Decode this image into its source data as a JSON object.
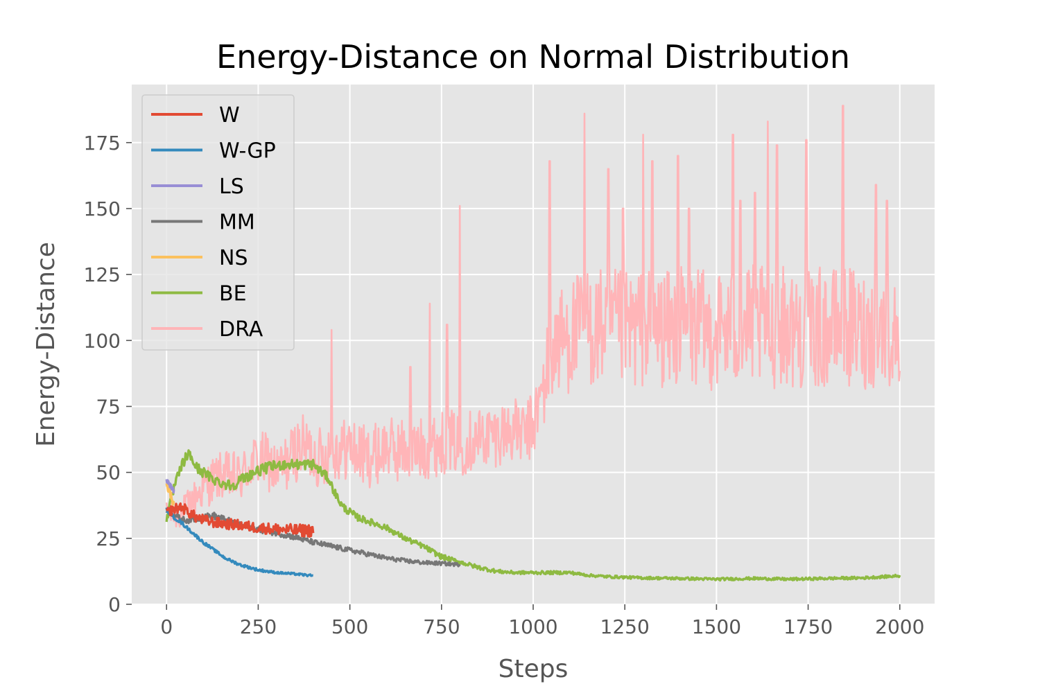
{
  "chart_data": {
    "type": "line",
    "title": "Energy-Distance on Normal Distribution",
    "xlabel": "Steps",
    "ylabel": "Energy-Distance",
    "xlim": [
      -95,
      2095
    ],
    "ylim": [
      0,
      197
    ],
    "xticks": [
      0,
      250,
      500,
      750,
      1000,
      1250,
      1500,
      1750,
      2000
    ],
    "yticks": [
      0,
      25,
      50,
      75,
      100,
      125,
      150,
      175
    ],
    "grid": true,
    "legend_position": "top-left",
    "background": "#e5e5e5",
    "series": [
      {
        "name": "DRA",
        "color": "#ffb5b8",
        "x": [
          0,
          25,
          50,
          75,
          100,
          125,
          150,
          175,
          200,
          225,
          250,
          275,
          300,
          325,
          350,
          375,
          400,
          425,
          450,
          475,
          500,
          525,
          550,
          575,
          600,
          625,
          650,
          675,
          700,
          725,
          750,
          775,
          800,
          825,
          850,
          875,
          900,
          925,
          950,
          975,
          1000,
          1025,
          1050,
          1075,
          1100,
          1125,
          1150,
          1175,
          1200,
          1225,
          1250,
          1275,
          1300,
          1325,
          1350,
          1375,
          1400,
          1425,
          1450,
          1475,
          1500,
          1525,
          1550,
          1575,
          1600,
          1625,
          1650,
          1675,
          1700,
          1725,
          1750,
          1775,
          1800,
          1825,
          1850,
          1875,
          1900,
          1925,
          1950,
          1975,
          2000
        ],
        "y": [
          35,
          33,
          36,
          40,
          44,
          47,
          49,
          48,
          48,
          52,
          55,
          54,
          50,
          53,
          58,
          60,
          57,
          55,
          60,
          58,
          60,
          57,
          56,
          57,
          60,
          58,
          59,
          58,
          59,
          60,
          61,
          62,
          60,
          62,
          63,
          64,
          64,
          66,
          66,
          64,
          68,
          80,
          96,
          100,
          102,
          104,
          105,
          104,
          106,
          104,
          103,
          104,
          105,
          104,
          105,
          103,
          106,
          104,
          105,
          103,
          105,
          104,
          105,
          104,
          106,
          105,
          104,
          106,
          105,
          104,
          103,
          105,
          104,
          105,
          106,
          104,
          103,
          105,
          104,
          103,
          100
        ],
        "spread": [
          4,
          5,
          6,
          7,
          8,
          9,
          9,
          10,
          10,
          10,
          11,
          11,
          11,
          11,
          12,
          12,
          12,
          12,
          12,
          12,
          12,
          12,
          12,
          12,
          12,
          12,
          12,
          12,
          12,
          12,
          12,
          12,
          12,
          12,
          12,
          12,
          12,
          12,
          12,
          12,
          13,
          16,
          20,
          21,
          22,
          22,
          23,
          23,
          23,
          23,
          23,
          23,
          23,
          23,
          23,
          23,
          23,
          23,
          23,
          23,
          23,
          23,
          23,
          23,
          23,
          23,
          23,
          23,
          23,
          23,
          23,
          23,
          23,
          23,
          23,
          23,
          23,
          23,
          23,
          23,
          18
        ],
        "spikes": [
          [
            450,
            104
          ],
          [
            665,
            90
          ],
          [
            718,
            114
          ],
          [
            765,
            106
          ],
          [
            800,
            151
          ],
          [
            1045,
            168
          ],
          [
            1140,
            186
          ],
          [
            1205,
            165
          ],
          [
            1245,
            150
          ],
          [
            1300,
            178
          ],
          [
            1325,
            168
          ],
          [
            1395,
            170
          ],
          [
            1425,
            150
          ],
          [
            1545,
            178
          ],
          [
            1565,
            153
          ],
          [
            1605,
            156
          ],
          [
            1640,
            183
          ],
          [
            1665,
            174
          ],
          [
            1745,
            176
          ],
          [
            1845,
            189
          ],
          [
            1935,
            159
          ],
          [
            1965,
            153
          ]
        ]
      },
      {
        "name": "BE",
        "color": "#8eba42",
        "x": [
          0,
          10,
          20,
          30,
          40,
          50,
          60,
          70,
          80,
          100,
          120,
          150,
          180,
          200,
          240,
          280,
          320,
          360,
          400,
          440,
          460,
          480,
          520,
          560,
          600,
          650,
          700,
          750,
          800,
          850,
          900,
          950,
          1000,
          1050,
          1100,
          1150,
          1200,
          1300,
          1400,
          1500,
          1600,
          1700,
          1800,
          1900,
          2000
        ],
        "y": [
          32,
          38,
          44,
          48,
          52,
          55,
          57,
          55,
          52,
          50,
          48,
          46,
          45,
          47,
          50,
          52,
          53,
          53,
          53,
          48,
          42,
          37,
          33,
          31,
          29,
          25,
          22,
          18,
          16,
          14,
          12.5,
          12,
          12,
          12,
          12,
          11,
          10.5,
          10,
          9.8,
          9.5,
          9.8,
          9.5,
          9.8,
          10,
          10.8
        ],
        "spread": [
          1.5,
          1.8,
          2,
          2,
          2,
          2,
          2,
          2,
          2,
          2,
          2,
          2,
          2,
          2,
          2,
          2,
          2,
          2,
          2,
          1.6,
          1.6,
          1.5,
          1.3,
          1.2,
          1.1,
          1,
          1,
          1,
          0.8,
          0.8,
          0.7,
          0.6,
          0.6,
          0.6,
          0.6,
          0.5,
          0.5,
          0.5,
          0.5,
          0.5,
          0.5,
          0.5,
          0.5,
          0.5,
          0.5
        ]
      },
      {
        "name": "MM",
        "color": "#777777",
        "x": [
          0,
          20,
          40,
          60,
          80,
          100,
          130,
          160,
          200,
          250,
          300,
          350,
          400,
          450,
          500,
          550,
          600,
          650,
          700,
          750,
          800
        ],
        "y": [
          36,
          34,
          32,
          32,
          32.5,
          33,
          33.5,
          32,
          30,
          28.5,
          27,
          25.5,
          23.5,
          22,
          20.5,
          19,
          17.5,
          16.5,
          15.8,
          15.5,
          15
        ],
        "spread": [
          1.5,
          1.3,
          1.2,
          1.2,
          1.2,
          1.3,
          1.3,
          1.3,
          1.2,
          1.2,
          1.1,
          1.1,
          1,
          1,
          0.9,
          0.9,
          0.8,
          0.8,
          0.7,
          0.7,
          0.6
        ]
      },
      {
        "name": "NS",
        "color": "#fbc15e",
        "x": [
          0,
          5,
          10,
          15,
          20
        ],
        "y": [
          46,
          44,
          42,
          40,
          38
        ],
        "spread": [
          1.5,
          1.5,
          1.5,
          1.5,
          1.5
        ]
      },
      {
        "name": "LS",
        "color": "#988ed5",
        "x": [
          0,
          5,
          10,
          15,
          20
        ],
        "y": [
          47,
          46,
          45,
          44,
          43
        ],
        "spread": [
          0.8,
          0.8,
          0.8,
          0.8,
          0.8
        ]
      },
      {
        "name": "W-GP",
        "color": "#348abd",
        "x": [
          0,
          20,
          40,
          60,
          80,
          100,
          130,
          160,
          200,
          250,
          300,
          350,
          400
        ],
        "y": [
          36,
          33,
          31,
          28.5,
          26,
          23.5,
          20.5,
          17.5,
          15,
          13,
          12,
          11.5,
          10.8
        ],
        "spread": [
          0.8,
          0.7,
          0.7,
          0.6,
          0.6,
          0.6,
          0.5,
          0.5,
          0.5,
          0.5,
          0.4,
          0.4,
          0.4
        ]
      },
      {
        "name": "W",
        "color": "#e24a33",
        "x": [
          0,
          20,
          40,
          60,
          80,
          100,
          130,
          160,
          200,
          250,
          300,
          350,
          400
        ],
        "y": [
          35,
          36,
          37,
          35,
          33,
          32,
          31,
          30.5,
          30,
          29,
          28.5,
          28,
          28
        ],
        "spread": [
          1.5,
          2,
          2,
          2,
          2,
          2,
          2,
          2,
          2,
          2,
          2.2,
          2.3,
          2.5
        ]
      }
    ],
    "legend_order": [
      "W",
      "W-GP",
      "LS",
      "MM",
      "NS",
      "BE",
      "DRA"
    ]
  }
}
